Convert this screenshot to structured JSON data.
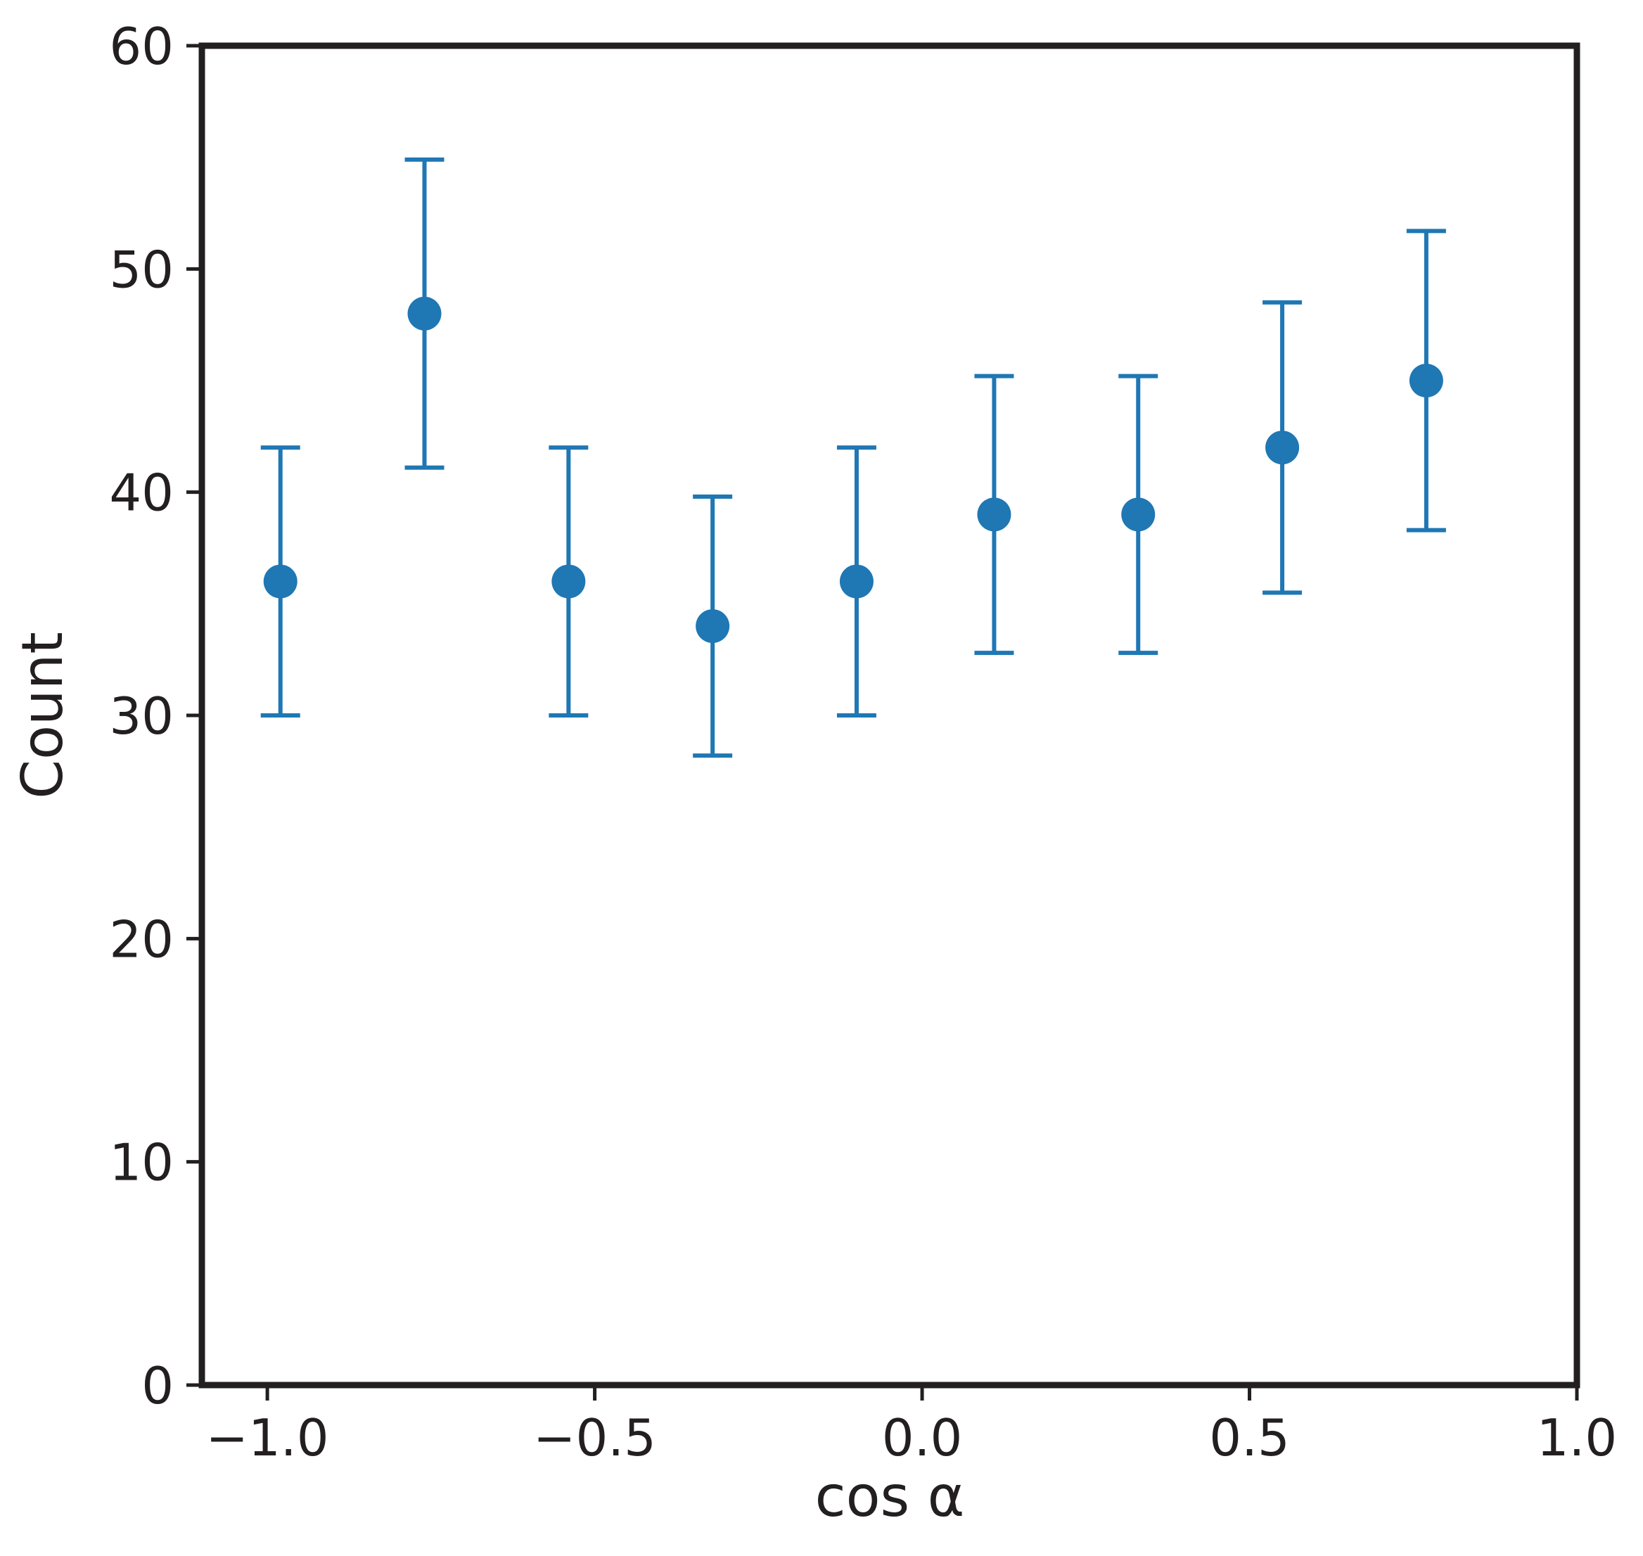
{
  "chart_data": {
    "type": "scatter",
    "title": "",
    "xlabel": "cos α",
    "ylabel": "Count",
    "xlim": [
      -1.1,
      1.0
    ],
    "ylim": [
      0,
      60
    ],
    "xticks": [
      -1.0,
      -0.5,
      0.0,
      0.5,
      1.0
    ],
    "xtick_labels": [
      "−1.0",
      "−0.5",
      "0.0",
      "0.5",
      "1.0"
    ],
    "yticks": [
      0,
      10,
      20,
      30,
      40,
      50,
      60
    ],
    "ytick_labels": [
      "0",
      "10",
      "20",
      "30",
      "40",
      "50",
      "60"
    ],
    "grid": false,
    "series": [
      {
        "marker": "circle",
        "error_bars": true,
        "x": [
          -0.98,
          -0.76,
          -0.54,
          -0.32,
          -0.1,
          0.11,
          0.33,
          0.55,
          0.77
        ],
        "y": [
          36,
          48,
          36,
          34,
          36,
          39,
          39,
          42,
          45
        ],
        "yerr": [
          6.0,
          6.9,
          6.0,
          5.8,
          6.0,
          6.2,
          6.2,
          6.5,
          6.7
        ]
      }
    ]
  },
  "colors": {
    "series": "#1f77b4",
    "axes": "#231f20",
    "background": "#ffffff"
  }
}
